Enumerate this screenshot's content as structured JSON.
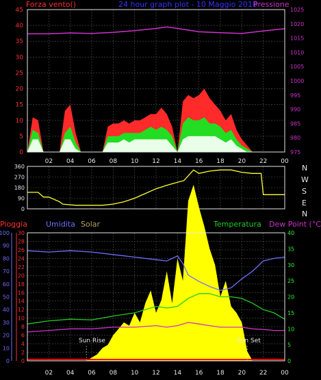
{
  "colors": {
    "wind": "#ff2a2a",
    "wind_gust_mid": "#22dd22",
    "wind_avg": "#e8ffe8",
    "pressure": "#cc33cc",
    "direction": "#ffff33",
    "humidity": "#6f6fff",
    "solar": "#ffff00",
    "temperature": "#22cc22",
    "dew_point": "#cc33cc",
    "rain": "#ff0000",
    "grid": "#555555",
    "frame": "#e8e8e8",
    "title_blue": "#3333ff",
    "left_axis_red": "#ff3030",
    "left_axis_blue": "#6f6fff",
    "right_axis_green": "#33ee33",
    "pressure_axis": "#cc33cc",
    "solar_label": "#b8a060"
  },
  "header": {
    "wind_label": "Forza vento()",
    "title": "24 hour graph plot - 10 Maggio 2018",
    "pressure_label": "Pressione"
  },
  "compass": [
    "N",
    "W",
    "S",
    "E",
    "N"
  ],
  "legend": {
    "rain": "Pioggia",
    "humidity": "Umidita",
    "solar": "Solar",
    "temperature": "Temperatura",
    "dew_point": "Dew Point (°C)"
  },
  "annotations": {
    "sunrise": "Sun Rise",
    "sunset": "Sun Set",
    "sunrise_overlap": "Sun Rise"
  },
  "chart_data": [
    {
      "type": "area",
      "id": "wind",
      "x_ticks": [
        "02",
        "04",
        "06",
        "08",
        "10",
        "12",
        "14",
        "16",
        "18",
        "20",
        "22",
        "00"
      ],
      "y_left_ticks": [
        0,
        5,
        10,
        15,
        20,
        25,
        30,
        35,
        40,
        45
      ],
      "ylim_left": [
        0,
        45
      ],
      "y_right_ticks": [
        975,
        980,
        985,
        990,
        995,
        1000,
        1005,
        1010,
        1015,
        1020,
        1025
      ],
      "ylim_right": [
        975,
        1025
      ],
      "series": [
        {
          "name": "wind_max",
          "hours": [
            0,
            0.5,
            1,
            1.5,
            2,
            2.5,
            3,
            3.5,
            4,
            4.5,
            5,
            5.5,
            6,
            6.5,
            7,
            7.5,
            8,
            8.5,
            9,
            9.5,
            10,
            10.5,
            11,
            11.5,
            12,
            12.5,
            13,
            13.5,
            14,
            14.5,
            15,
            15.5,
            16,
            16.5,
            17,
            17.5,
            18,
            18.5,
            19,
            19.5,
            20,
            20.5,
            21,
            21.5,
            22,
            22.5,
            23,
            23.5,
            24
          ],
          "values": [
            0,
            11,
            10,
            0,
            0,
            0,
            0,
            13,
            15,
            6,
            0,
            0,
            0,
            0,
            0,
            8,
            9,
            9,
            10,
            9,
            10,
            10,
            11,
            12,
            12,
            14,
            12,
            8,
            0,
            16,
            18,
            17,
            18,
            20,
            17,
            15,
            13,
            10,
            12,
            7,
            4,
            2,
            0,
            0,
            0,
            0,
            0,
            0,
            0
          ]
        },
        {
          "name": "wind_mid",
          "hours": [
            0,
            0.5,
            1,
            1.5,
            2,
            2.5,
            3,
            3.5,
            4,
            4.5,
            5,
            5.5,
            6,
            6.5,
            7,
            7.5,
            8,
            8.5,
            9,
            9.5,
            10,
            10.5,
            11,
            11.5,
            12,
            12.5,
            13,
            13.5,
            14,
            14.5,
            15,
            15.5,
            16,
            16.5,
            17,
            17.5,
            18,
            18.5,
            19,
            19.5,
            20,
            20.5,
            21,
            21.5,
            22,
            22.5,
            23,
            23.5,
            24
          ],
          "values": [
            0,
            7,
            6,
            0,
            0,
            0,
            0,
            6,
            8,
            3,
            0,
            0,
            0,
            0,
            0,
            5,
            5,
            5,
            6,
            6,
            6,
            6,
            7,
            8,
            7,
            8,
            7,
            5,
            0,
            9,
            11,
            10,
            10,
            11,
            9,
            9,
            8,
            6,
            7,
            4,
            2,
            1,
            0,
            0,
            0,
            0,
            0,
            0,
            0
          ]
        },
        {
          "name": "wind_avg",
          "hours": [
            0,
            0.5,
            1,
            1.5,
            2,
            2.5,
            3,
            3.5,
            4,
            4.5,
            5,
            5.5,
            6,
            6.5,
            7,
            7.5,
            8,
            8.5,
            9,
            9.5,
            10,
            10.5,
            11,
            11.5,
            12,
            12.5,
            13,
            13.5,
            14,
            14.5,
            15,
            15.5,
            16,
            16.5,
            17,
            17.5,
            18,
            18.5,
            19,
            19.5,
            20,
            20.5,
            21,
            21.5,
            22,
            22.5,
            23,
            23.5,
            24
          ],
          "values": [
            0,
            4,
            4,
            0,
            0,
            0,
            0,
            4,
            4,
            1,
            0,
            0,
            0,
            0,
            0,
            3,
            3,
            3,
            4,
            3,
            4,
            4,
            4,
            4,
            4,
            4,
            4,
            2,
            0,
            4,
            5,
            5,
            5,
            5,
            5,
            5,
            4,
            3,
            4,
            2,
            1,
            0,
            0,
            0,
            0,
            0,
            0,
            0,
            0
          ]
        },
        {
          "name": "pressure",
          "hours": [
            0,
            2,
            4,
            6,
            8,
            10,
            12,
            13,
            14,
            16,
            18,
            20,
            22,
            24
          ],
          "values": [
            1016.5,
            1016.5,
            1016.8,
            1016.6,
            1017.0,
            1017.6,
            1018.4,
            1018.9,
            1018.4,
            1017.2,
            1016.9,
            1016.6,
            1017.5,
            1018.3
          ]
        }
      ]
    },
    {
      "type": "line",
      "id": "wind_direction",
      "x_ticks": [
        "02",
        "04",
        "06",
        "08",
        "10",
        "12",
        "14",
        "16",
        "18",
        "20",
        "22",
        "00"
      ],
      "y_ticks": [
        0,
        90,
        180,
        270,
        360
      ],
      "ylim": [
        0,
        360
      ],
      "series": [
        {
          "name": "direction",
          "hours": [
            0,
            1,
            1.5,
            2,
            3,
            3.3,
            4.5,
            5,
            6,
            7,
            8,
            9,
            10,
            11,
            12,
            13,
            14,
            14.6,
            15,
            15.5,
            16,
            17,
            18,
            19,
            20,
            21,
            21.8,
            22,
            23,
            24
          ],
          "values": [
            140,
            140,
            100,
            100,
            60,
            40,
            30,
            30,
            30,
            30,
            40,
            60,
            90,
            130,
            170,
            200,
            225,
            240,
            280,
            330,
            300,
            320,
            330,
            330,
            310,
            300,
            300,
            120,
            120,
            120
          ]
        }
      ]
    },
    {
      "type": "line",
      "id": "temp_humidity_solar",
      "x_ticks": [
        "02",
        "04",
        "06",
        "08",
        "10",
        "12",
        "14",
        "16",
        "18",
        "20",
        "22",
        "00"
      ],
      "y_humidity_ticks": [
        0,
        10,
        20,
        30,
        40,
        50,
        60,
        70,
        80,
        90,
        100
      ],
      "ylim_humidity": [
        0,
        100
      ],
      "y_rain_ticks": [
        0,
        2,
        4,
        6,
        8,
        10,
        12,
        14,
        16,
        18,
        20,
        22,
        24,
        26,
        28,
        30
      ],
      "ylim_rain": [
        0,
        30
      ],
      "y_temp_ticks": [
        0,
        5,
        10,
        15,
        20,
        25,
        30,
        35,
        40
      ],
      "ylim_temp": [
        0,
        40
      ],
      "series": [
        {
          "name": "humidity",
          "hours": [
            0,
            2,
            4,
            6,
            8,
            10,
            12,
            13,
            14,
            14.5,
            15,
            16,
            17,
            18,
            19,
            20,
            21,
            22,
            23,
            24
          ],
          "values": [
            86,
            85,
            86,
            85,
            83,
            81,
            79,
            78,
            82,
            76,
            67,
            62,
            58,
            55,
            57,
            64,
            70,
            78,
            80,
            81
          ]
        },
        {
          "name": "solar",
          "hours": [
            0,
            5.5,
            6,
            6.5,
            7,
            7.5,
            8,
            8.5,
            9,
            9.5,
            10,
            10.5,
            11,
            11.5,
            12,
            12.5,
            13,
            13.5,
            14,
            14.5,
            15,
            15.5,
            16,
            16.5,
            17,
            17.5,
            18,
            18.5,
            19,
            19.5,
            20,
            20.5,
            21,
            24
          ],
          "values": [
            0,
            0,
            1,
            2,
            4,
            5,
            8,
            10,
            12,
            11,
            15,
            12,
            18,
            22,
            15,
            19,
            28,
            18,
            32,
            25,
            50,
            55,
            48,
            42,
            35,
            30,
            20,
            25,
            17,
            15,
            12,
            3,
            0,
            0
          ]
        },
        {
          "name": "temperature",
          "hours": [
            0,
            2,
            4,
            6,
            8,
            10,
            12,
            13,
            14,
            15,
            16,
            17,
            18,
            19,
            20,
            21,
            22,
            23,
            24
          ],
          "values": [
            11.5,
            12.5,
            13,
            12.8,
            14,
            15,
            17,
            16.5,
            17,
            19.5,
            21,
            21,
            20,
            20,
            19.5,
            18,
            16,
            15,
            13
          ]
        },
        {
          "name": "dew_point",
          "hours": [
            0,
            2,
            4,
            6,
            8,
            10,
            12,
            13,
            14,
            15,
            16,
            17,
            18,
            19,
            20,
            21,
            22,
            23,
            24
          ],
          "values": [
            9,
            9.5,
            10,
            10,
            10.5,
            10.5,
            11,
            10.5,
            11,
            12,
            11.5,
            11,
            10.5,
            10.5,
            10.5,
            10,
            9.8,
            9.5,
            9.5
          ]
        },
        {
          "name": "rain",
          "hours": [
            0,
            24
          ],
          "values": [
            0.3,
            0.3
          ]
        }
      ]
    }
  ]
}
